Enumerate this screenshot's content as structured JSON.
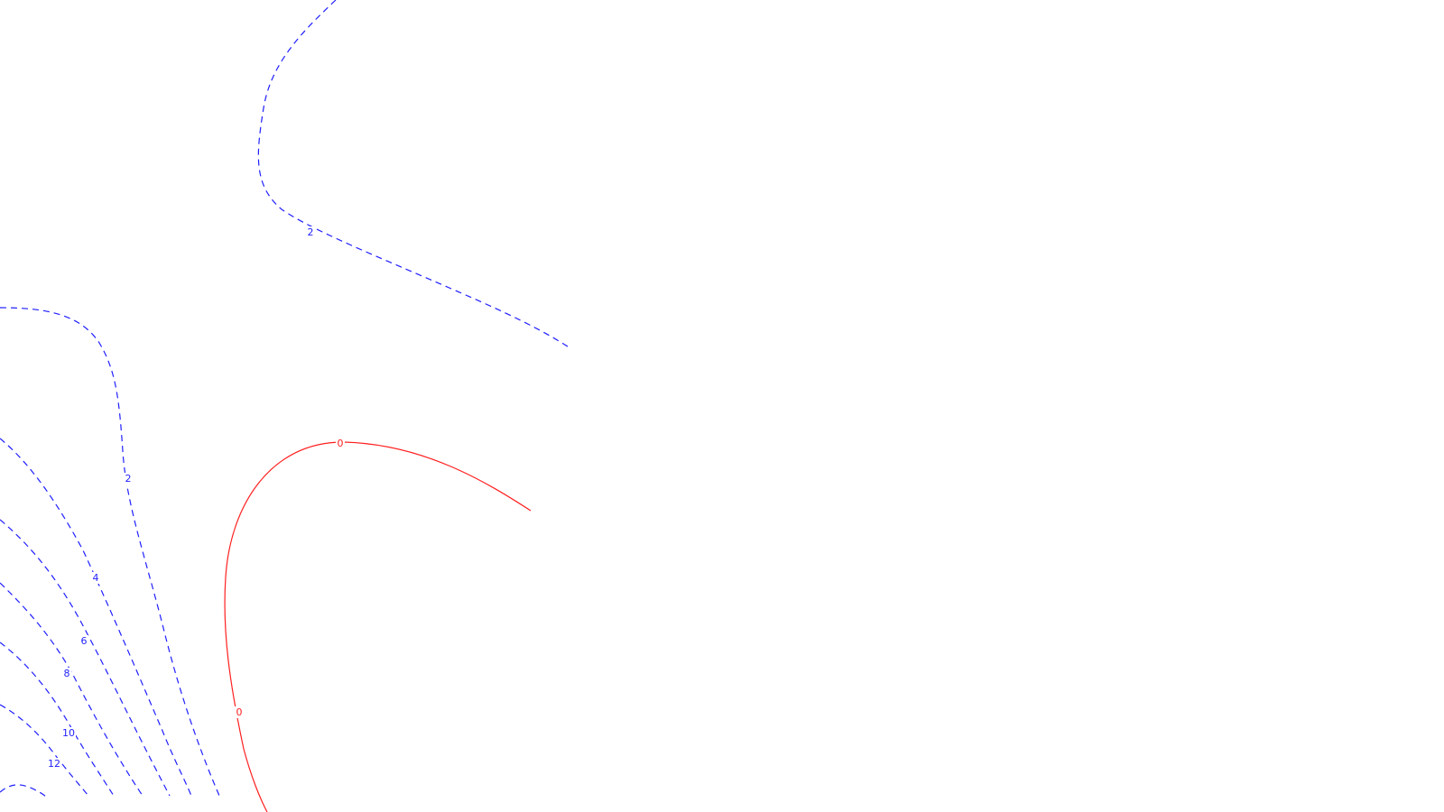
{
  "colors": {
    "negative_contour": "#1f1fff",
    "zero_contour": "#ff1f1f",
    "background": "#ffffff"
  },
  "contours": {
    "level_2_top": "2",
    "level_2_left": "2",
    "level_4": "4",
    "level_6": "6",
    "level_8": "8",
    "level_10": "10",
    "level_12": "12",
    "level_0_top": "0",
    "level_0_left": "0"
  }
}
